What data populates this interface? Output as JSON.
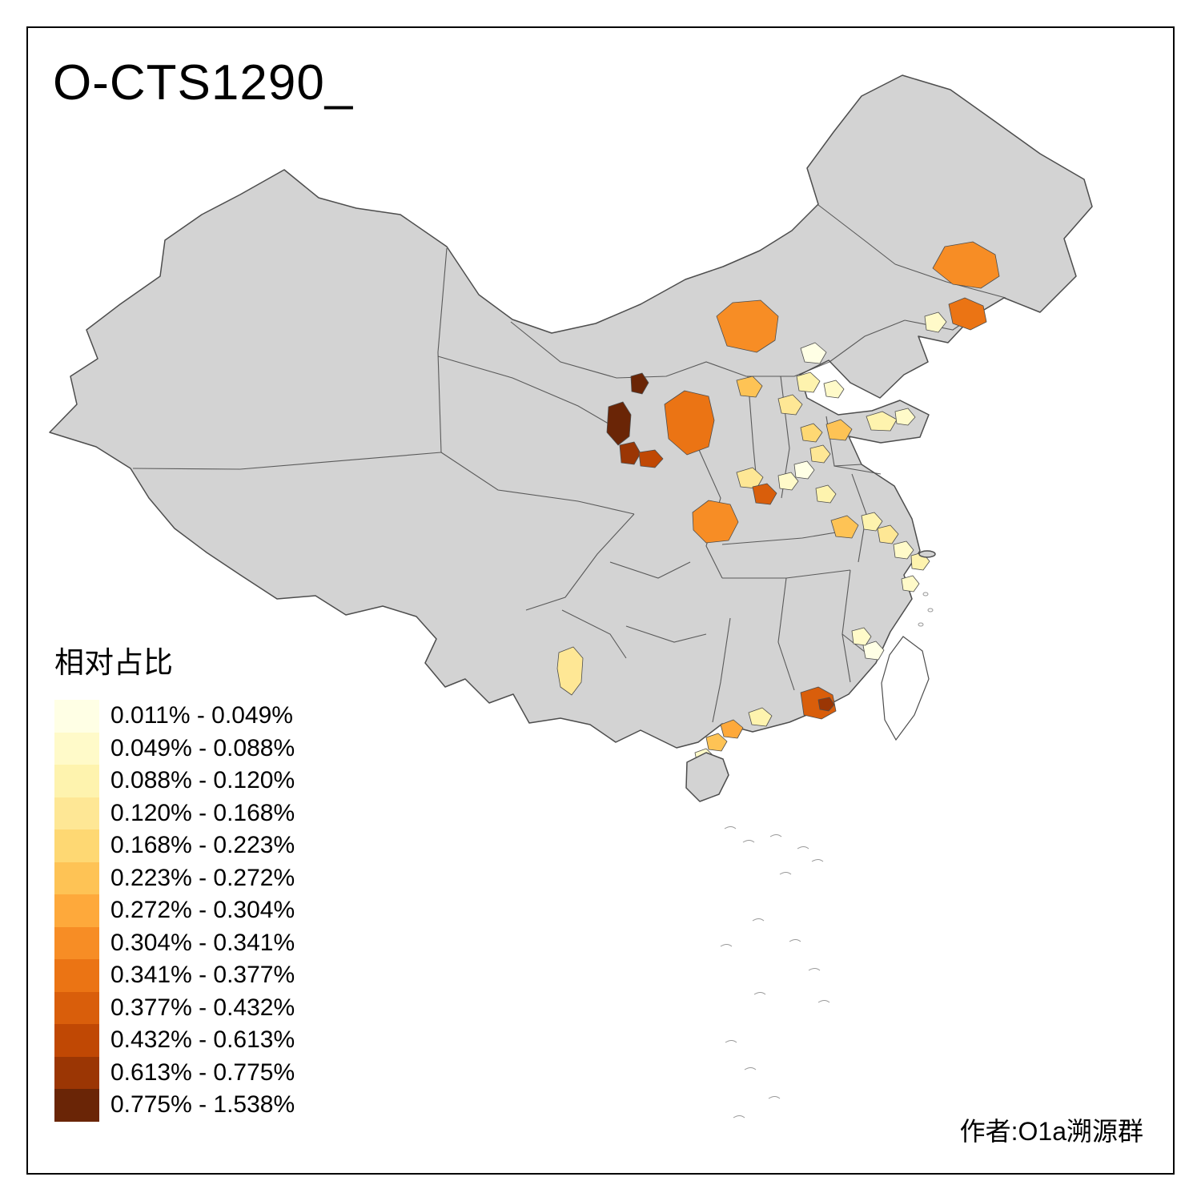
{
  "title": "O-CTS1290_",
  "legend": {
    "title": "相对占比",
    "items": [
      {
        "label": "0.011% - 0.049%",
        "color": "#FFFFE5"
      },
      {
        "label": "0.049% - 0.088%",
        "color": "#FFFAC9"
      },
      {
        "label": "0.088% - 0.120%",
        "color": "#FEF3AE"
      },
      {
        "label": "0.120% - 0.168%",
        "color": "#FEE795"
      },
      {
        "label": "0.168% - 0.223%",
        "color": "#FED873"
      },
      {
        "label": "0.223% - 0.272%",
        "color": "#FEC355"
      },
      {
        "label": "0.272% - 0.304%",
        "color": "#FEA93B"
      },
      {
        "label": "0.304% - 0.341%",
        "color": "#F78D25"
      },
      {
        "label": "0.341% - 0.377%",
        "color": "#EB7414"
      },
      {
        "label": "0.377% - 0.432%",
        "color": "#D95E0B"
      },
      {
        "label": "0.432% - 0.613%",
        "color": "#C04804"
      },
      {
        "label": "0.613% - 0.775%",
        "color": "#9B3604"
      },
      {
        "label": "0.775% - 1.538%",
        "color": "#6A2506"
      }
    ]
  },
  "credit": "作者:O1a溯源群",
  "map": {
    "land_fill": "#D3D3D3",
    "province_border_color": "#4D4D4D",
    "background": "#FFFFFF"
  }
}
